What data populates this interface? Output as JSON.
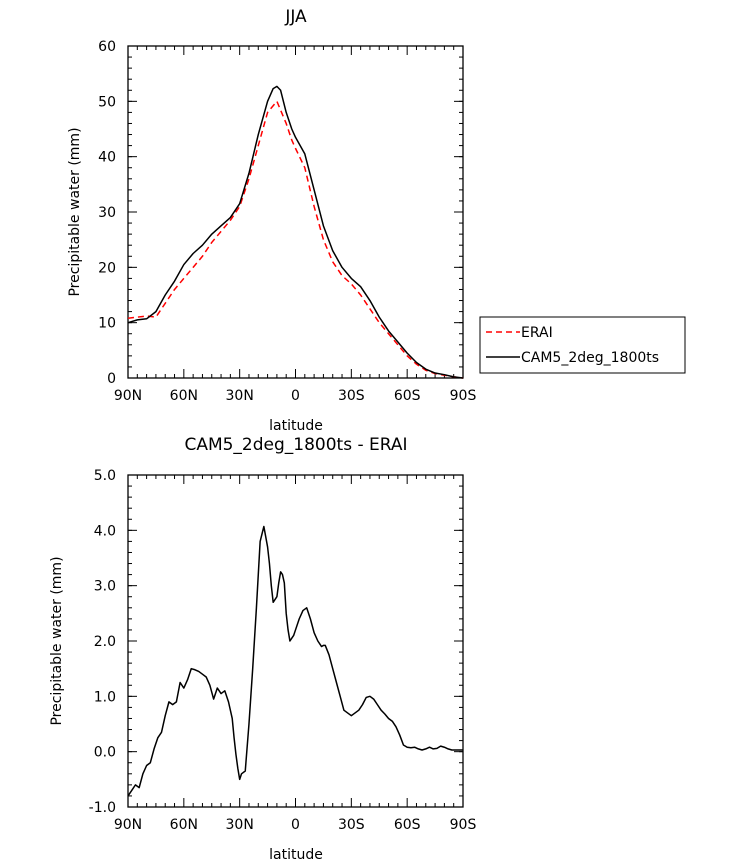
{
  "chart_data": [
    {
      "type": "line",
      "title": "JJA",
      "xlabel": "latitude",
      "ylabel": "Precipitable water (mm)",
      "xlim": [
        90,
        -90
      ],
      "ylim": [
        0,
        60
      ],
      "x_ticks": [
        {
          "value": 90,
          "label": "90N"
        },
        {
          "value": 60,
          "label": "60N"
        },
        {
          "value": 30,
          "label": "30N"
        },
        {
          "value": 0,
          "label": "0"
        },
        {
          "value": -30,
          "label": "30S"
        },
        {
          "value": -60,
          "label": "60S"
        },
        {
          "value": -90,
          "label": "90S"
        }
      ],
      "y_ticks": [
        0,
        10,
        20,
        30,
        40,
        50,
        60
      ],
      "legend_position": "right",
      "series": [
        {
          "name": "ERAI",
          "color": "#ff0000",
          "dash": "dashed",
          "x": [
            90,
            80,
            75,
            70,
            65,
            60,
            55,
            50,
            45,
            40,
            35,
            30,
            25,
            20,
            15,
            10,
            5,
            2,
            0,
            -5,
            -10,
            -15,
            -20,
            -25,
            -30,
            -35,
            -40,
            -45,
            -50,
            -55,
            -60,
            -65,
            -70,
            -75,
            -80,
            -85,
            -90
          ],
          "y": [
            10.8,
            11.2,
            11.0,
            13.5,
            16.0,
            18.0,
            20.0,
            22.0,
            24.5,
            26.5,
            28.5,
            31.0,
            36.0,
            42.0,
            48.0,
            50.0,
            46.0,
            43.0,
            41.5,
            38.0,
            31.0,
            25.0,
            21.0,
            18.5,
            17.0,
            15.0,
            12.5,
            10.0,
            8.0,
            6.0,
            4.0,
            2.5,
            1.4,
            0.8,
            0.5,
            0.2,
            0.0
          ]
        },
        {
          "name": "CAM5_2deg_1800ts",
          "color": "#000000",
          "dash": "solid",
          "x": [
            90,
            85,
            80,
            75,
            70,
            65,
            60,
            55,
            50,
            45,
            40,
            35,
            30,
            25,
            20,
            15,
            12,
            10,
            8,
            5,
            2,
            0,
            -5,
            -10,
            -15,
            -20,
            -25,
            -30,
            -35,
            -40,
            -45,
            -50,
            -55,
            -60,
            -65,
            -70,
            -75,
            -80,
            -85,
            -90
          ],
          "y": [
            10.0,
            10.5,
            10.7,
            12.0,
            15.0,
            17.5,
            20.5,
            22.5,
            24.0,
            26.0,
            27.5,
            29.0,
            31.5,
            37.0,
            44.0,
            50.0,
            52.3,
            52.7,
            52.0,
            48.0,
            45.0,
            43.5,
            40.5,
            34.0,
            27.5,
            23.0,
            20.0,
            18.0,
            16.5,
            14.0,
            11.0,
            8.5,
            6.5,
            4.5,
            2.8,
            1.6,
            0.9,
            0.6,
            0.2,
            0.0
          ]
        }
      ]
    },
    {
      "type": "line",
      "title": "CAM5_2deg_1800ts - ERAI",
      "xlabel": "latitude",
      "ylabel": "Precipitable water (mm)",
      "xlim": [
        90,
        -90
      ],
      "ylim": [
        -1.0,
        5.0
      ],
      "x_ticks": [
        {
          "value": 90,
          "label": "90N"
        },
        {
          "value": 60,
          "label": "60N"
        },
        {
          "value": 30,
          "label": "30N"
        },
        {
          "value": 0,
          "label": "0"
        },
        {
          "value": -30,
          "label": "30S"
        },
        {
          "value": -60,
          "label": "60S"
        },
        {
          "value": -90,
          "label": "90S"
        }
      ],
      "y_ticks": [
        {
          "value": -1.0,
          "label": "-1.0"
        },
        {
          "value": 0.0,
          "label": "0.0"
        },
        {
          "value": 1.0,
          "label": "1.0"
        },
        {
          "value": 2.0,
          "label": "2.0"
        },
        {
          "value": 3.0,
          "label": "3.0"
        },
        {
          "value": 4.0,
          "label": "4.0"
        },
        {
          "value": 5.0,
          "label": "5.0"
        }
      ],
      "series": [
        {
          "color": "#000000",
          "dash": "solid",
          "x": [
            90,
            88,
            86,
            84,
            82,
            80,
            78,
            76,
            74,
            72,
            70,
            68,
            66,
            64,
            62,
            60,
            58,
            56,
            54,
            52,
            50,
            48,
            46,
            44,
            42,
            40,
            38,
            36,
            34,
            33,
            32,
            31,
            30,
            29,
            27,
            25,
            23,
            21,
            19,
            17,
            15,
            14,
            13,
            12,
            10,
            9,
            8,
            7,
            6,
            5,
            4,
            3,
            2,
            1,
            0,
            -2,
            -4,
            -6,
            -8,
            -10,
            -12,
            -14,
            -15,
            -16,
            -18,
            -20,
            -22,
            -24,
            -26,
            -28,
            -30,
            -32,
            -34,
            -36,
            -38,
            -40,
            -42,
            -44,
            -46,
            -48,
            -50,
            -52,
            -54,
            -56,
            -58,
            -60,
            -62,
            -64,
            -66,
            -68,
            -70,
            -72,
            -74,
            -76,
            -78,
            -80,
            -82,
            -84,
            -86,
            -88,
            -90
          ],
          "y": [
            -0.8,
            -0.7,
            -0.6,
            -0.65,
            -0.4,
            -0.25,
            -0.2,
            0.05,
            0.25,
            0.35,
            0.65,
            0.9,
            0.85,
            0.9,
            1.25,
            1.15,
            1.3,
            1.5,
            1.48,
            1.45,
            1.4,
            1.35,
            1.2,
            0.95,
            1.15,
            1.05,
            1.1,
            0.9,
            0.6,
            0.25,
            -0.05,
            -0.3,
            -0.5,
            -0.4,
            -0.35,
            0.5,
            1.5,
            2.6,
            3.8,
            4.07,
            3.7,
            3.4,
            3.0,
            2.7,
            2.8,
            3.05,
            3.25,
            3.2,
            3.05,
            2.5,
            2.2,
            2.0,
            2.05,
            2.1,
            2.2,
            2.4,
            2.55,
            2.6,
            2.4,
            2.15,
            2.0,
            1.9,
            1.92,
            1.92,
            1.75,
            1.5,
            1.25,
            1.0,
            0.75,
            0.7,
            0.65,
            0.7,
            0.75,
            0.85,
            0.98,
            1.0,
            0.95,
            0.85,
            0.75,
            0.68,
            0.6,
            0.55,
            0.45,
            0.3,
            0.12,
            0.08,
            0.07,
            0.08,
            0.05,
            0.03,
            0.05,
            0.08,
            0.05,
            0.06,
            0.1,
            0.08,
            0.05,
            0.03,
            0.03,
            0.03,
            0.03
          ]
        }
      ]
    }
  ]
}
